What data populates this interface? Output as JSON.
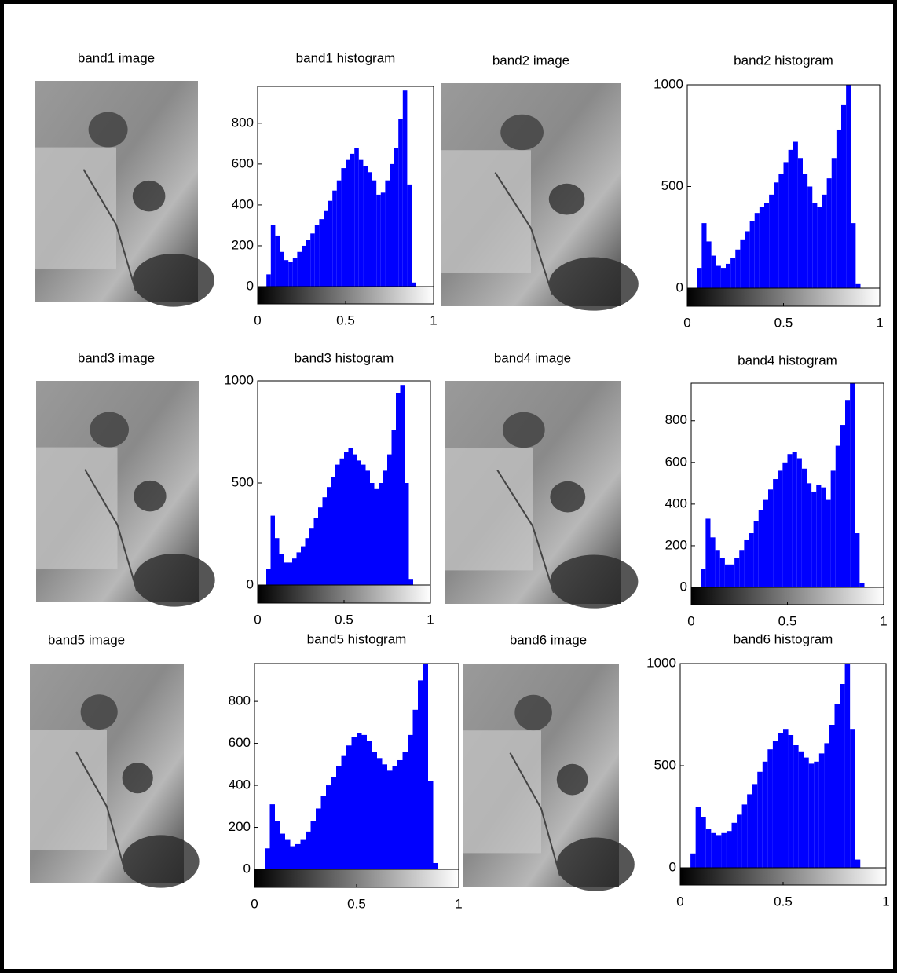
{
  "chart_data": [
    {
      "type": "histogram",
      "title": "band1 histogram",
      "color": "#0000ff",
      "bins": [
        0,
        0.025,
        0.05,
        0.075,
        0.1,
        0.125,
        0.15,
        0.175,
        0.2,
        0.225,
        0.25,
        0.275,
        0.3,
        0.325,
        0.35,
        0.375,
        0.4,
        0.425,
        0.45,
        0.475,
        0.5,
        0.525,
        0.55,
        0.575,
        0.6,
        0.625,
        0.65,
        0.675,
        0.7,
        0.725,
        0.75,
        0.775,
        0.8,
        0.825,
        0.85,
        0.875,
        0.9,
        0.925,
        0.95,
        0.975,
        1
      ],
      "values": [
        0,
        0,
        60,
        300,
        250,
        170,
        130,
        120,
        140,
        170,
        200,
        230,
        260,
        300,
        330,
        370,
        420,
        470,
        520,
        580,
        620,
        650,
        680,
        620,
        590,
        560,
        520,
        450,
        460,
        520,
        600,
        680,
        820,
        960,
        500,
        20,
        0,
        0,
        0,
        0
      ],
      "xlim": [
        0,
        1
      ],
      "xticks": [
        0,
        0.5,
        1
      ],
      "ylim": [
        0,
        980
      ],
      "yticks": [
        0,
        200,
        400,
        600,
        800
      ]
    },
    {
      "type": "histogram",
      "title": "band2 histogram",
      "color": "#0000ff",
      "bins": [
        0,
        0.025,
        0.05,
        0.075,
        0.1,
        0.125,
        0.15,
        0.175,
        0.2,
        0.225,
        0.25,
        0.275,
        0.3,
        0.325,
        0.35,
        0.375,
        0.4,
        0.425,
        0.45,
        0.475,
        0.5,
        0.525,
        0.55,
        0.575,
        0.6,
        0.625,
        0.65,
        0.675,
        0.7,
        0.725,
        0.75,
        0.775,
        0.8,
        0.825,
        0.85,
        0.875,
        0.9,
        0.925,
        0.95,
        0.975,
        1
      ],
      "values": [
        0,
        0,
        100,
        320,
        230,
        160,
        110,
        100,
        120,
        150,
        190,
        240,
        280,
        330,
        370,
        400,
        420,
        460,
        520,
        560,
        620,
        680,
        720,
        640,
        560,
        500,
        420,
        400,
        460,
        540,
        640,
        780,
        900,
        1000,
        320,
        20,
        0,
        0,
        0,
        0
      ],
      "xlim": [
        0,
        1
      ],
      "xticks": [
        0,
        0.5,
        1
      ],
      "ylim": [
        0,
        1000
      ],
      "yticks": [
        0,
        500,
        1000
      ]
    },
    {
      "type": "histogram",
      "title": "band3 histogram",
      "color": "#0000ff",
      "bins": [
        0,
        0.025,
        0.05,
        0.075,
        0.1,
        0.125,
        0.15,
        0.175,
        0.2,
        0.225,
        0.25,
        0.275,
        0.3,
        0.325,
        0.35,
        0.375,
        0.4,
        0.425,
        0.45,
        0.475,
        0.5,
        0.525,
        0.55,
        0.575,
        0.6,
        0.625,
        0.65,
        0.675,
        0.7,
        0.725,
        0.75,
        0.775,
        0.8,
        0.825,
        0.85,
        0.875,
        0.9,
        0.925,
        0.95,
        0.975,
        1
      ],
      "values": [
        0,
        0,
        80,
        340,
        230,
        150,
        110,
        110,
        130,
        160,
        190,
        230,
        280,
        330,
        380,
        430,
        480,
        530,
        590,
        620,
        650,
        670,
        640,
        610,
        590,
        560,
        500,
        470,
        500,
        560,
        640,
        760,
        940,
        980,
        500,
        30,
        0,
        0,
        0,
        0
      ],
      "xlim": [
        0,
        1
      ],
      "xticks": [
        0,
        0.5,
        1
      ],
      "ylim": [
        0,
        1000
      ],
      "yticks": [
        0,
        500,
        1000
      ]
    },
    {
      "type": "histogram",
      "title": "band4 histogram",
      "color": "#0000ff",
      "bins": [
        0,
        0.025,
        0.05,
        0.075,
        0.1,
        0.125,
        0.15,
        0.175,
        0.2,
        0.225,
        0.25,
        0.275,
        0.3,
        0.325,
        0.35,
        0.375,
        0.4,
        0.425,
        0.45,
        0.475,
        0.5,
        0.525,
        0.55,
        0.575,
        0.6,
        0.625,
        0.65,
        0.675,
        0.7,
        0.725,
        0.75,
        0.775,
        0.8,
        0.825,
        0.85,
        0.875,
        0.9,
        0.925,
        0.95,
        0.975,
        1
      ],
      "values": [
        0,
        0,
        90,
        330,
        240,
        180,
        140,
        110,
        110,
        140,
        180,
        230,
        260,
        320,
        370,
        420,
        470,
        520,
        560,
        600,
        640,
        650,
        620,
        570,
        500,
        460,
        490,
        480,
        420,
        560,
        680,
        780,
        900,
        980,
        260,
        20,
        0,
        0,
        0,
        0
      ],
      "xlim": [
        0,
        1
      ],
      "xticks": [
        0,
        0.5,
        1
      ],
      "ylim": [
        0,
        980
      ],
      "yticks": [
        0,
        200,
        400,
        600,
        800
      ]
    },
    {
      "type": "histogram",
      "title": "band5 histogram",
      "color": "#0000ff",
      "bins": [
        0,
        0.025,
        0.05,
        0.075,
        0.1,
        0.125,
        0.15,
        0.175,
        0.2,
        0.225,
        0.25,
        0.275,
        0.3,
        0.325,
        0.35,
        0.375,
        0.4,
        0.425,
        0.45,
        0.475,
        0.5,
        0.525,
        0.55,
        0.575,
        0.6,
        0.625,
        0.65,
        0.675,
        0.7,
        0.725,
        0.75,
        0.775,
        0.8,
        0.825,
        0.85,
        0.875,
        0.9,
        0.925,
        0.95,
        0.975,
        1
      ],
      "values": [
        0,
        0,
        100,
        310,
        230,
        170,
        140,
        110,
        120,
        140,
        180,
        230,
        290,
        350,
        400,
        440,
        490,
        540,
        590,
        630,
        650,
        640,
        610,
        560,
        530,
        500,
        470,
        490,
        520,
        560,
        640,
        760,
        900,
        980,
        420,
        30,
        0,
        0,
        0,
        0
      ],
      "xlim": [
        0,
        1
      ],
      "xticks": [
        0,
        0.5,
        1
      ],
      "ylim": [
        0,
        980
      ],
      "yticks": [
        0,
        200,
        400,
        600,
        800
      ]
    },
    {
      "type": "histogram",
      "title": "band6 histogram",
      "color": "#0000ff",
      "bins": [
        0,
        0.025,
        0.05,
        0.075,
        0.1,
        0.125,
        0.15,
        0.175,
        0.2,
        0.225,
        0.25,
        0.275,
        0.3,
        0.325,
        0.35,
        0.375,
        0.4,
        0.425,
        0.45,
        0.475,
        0.5,
        0.525,
        0.55,
        0.575,
        0.6,
        0.625,
        0.65,
        0.675,
        0.7,
        0.725,
        0.75,
        0.775,
        0.8,
        0.825,
        0.85,
        0.875,
        0.9,
        0.925,
        0.95,
        0.975,
        1
      ],
      "values": [
        0,
        0,
        70,
        300,
        250,
        190,
        170,
        160,
        170,
        180,
        220,
        260,
        310,
        360,
        410,
        470,
        520,
        580,
        620,
        660,
        680,
        650,
        600,
        570,
        540,
        510,
        520,
        560,
        610,
        700,
        800,
        900,
        1000,
        680,
        40,
        0,
        0,
        0,
        0,
        0
      ],
      "xlim": [
        0,
        1
      ],
      "xticks": [
        0,
        0.5,
        1
      ],
      "ylim": [
        0,
        1000
      ],
      "yticks": [
        0,
        500,
        1000
      ]
    }
  ],
  "images": [
    {
      "title": "band1 image"
    },
    {
      "title": "band2 image"
    },
    {
      "title": "band3 image"
    },
    {
      "title": "band4 image"
    },
    {
      "title": "band5 image"
    },
    {
      "title": "band6 image"
    }
  ]
}
